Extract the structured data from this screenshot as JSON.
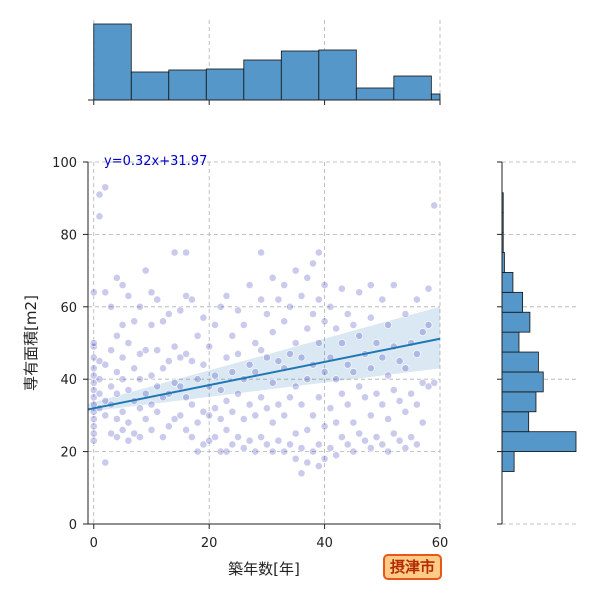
{
  "badge_label": "摂津市",
  "chart_data": {
    "type": "scatter",
    "title": "",
    "xlabel": "築年数[年]",
    "ylabel": "専有面積[m2]",
    "xlim": [
      -1,
      60
    ],
    "ylim": [
      0,
      100
    ],
    "xticks": [
      0,
      20,
      40,
      60
    ],
    "yticks": [
      0,
      20,
      40,
      60,
      80,
      100
    ],
    "grid": true,
    "regression": {
      "equation": "y=0.32x+31.97",
      "slope": 0.32,
      "intercept": 31.97,
      "ci_left": [
        31.0,
        33.2
      ],
      "ci_right": [
        43.0,
        60.0
      ]
    },
    "colors": {
      "point": "#3f3fbf",
      "regression_line": "#1f77b4",
      "ci_band": "#1f77b4",
      "histogram_fill": "#5597c9",
      "histogram_edge": "#111111",
      "equation_text": "#0000cc",
      "badge_background": "#ffcc88",
      "badge_border": "#e8561a",
      "badge_text": "#b22a00"
    },
    "marginal_x_histogram": {
      "bin_edges": [
        0,
        6.5,
        13,
        19.5,
        26,
        32.5,
        39,
        45.5,
        52,
        58.5,
        65
      ],
      "counts": [
        76,
        28,
        30,
        31,
        40,
        49,
        50,
        12,
        24,
        6
      ]
    },
    "marginal_y_histogram": {
      "bin_edges": [
        14.5,
        20,
        25.5,
        31,
        36.5,
        42,
        47.5,
        53,
        58.5,
        64,
        69.5,
        75,
        80.5,
        86,
        91.5
      ],
      "counts": [
        10,
        61,
        22,
        28,
        34,
        30,
        14,
        23,
        17,
        9,
        2,
        1,
        1,
        1
      ]
    },
    "points": [
      [
        0,
        23
      ],
      [
        0,
        25
      ],
      [
        0,
        27
      ],
      [
        0,
        29
      ],
      [
        0,
        31
      ],
      [
        0,
        33
      ],
      [
        0,
        35
      ],
      [
        0,
        37
      ],
      [
        0,
        39
      ],
      [
        0,
        41
      ],
      [
        0,
        43
      ],
      [
        0,
        46
      ],
      [
        0,
        49
      ],
      [
        0,
        50
      ],
      [
        0,
        64
      ],
      [
        1,
        32
      ],
      [
        1,
        36
      ],
      [
        1,
        40
      ],
      [
        1,
        45
      ],
      [
        1,
        85
      ],
      [
        1,
        91
      ],
      [
        2,
        17
      ],
      [
        2,
        30
      ],
      [
        2,
        34
      ],
      [
        2,
        44
      ],
      [
        2,
        64
      ],
      [
        2,
        93
      ],
      [
        3,
        25
      ],
      [
        3,
        33
      ],
      [
        3,
        38
      ],
      [
        3,
        48
      ],
      [
        3,
        60
      ],
      [
        4,
        24
      ],
      [
        4,
        29
      ],
      [
        4,
        36
      ],
      [
        4,
        42
      ],
      [
        4,
        52
      ],
      [
        4,
        68
      ],
      [
        5,
        26
      ],
      [
        5,
        31
      ],
      [
        5,
        40
      ],
      [
        5,
        46
      ],
      [
        5,
        55
      ],
      [
        5,
        66
      ],
      [
        6,
        23
      ],
      [
        6,
        28
      ],
      [
        6,
        37
      ],
      [
        6,
        50
      ],
      [
        6,
        63
      ],
      [
        7,
        25
      ],
      [
        7,
        34
      ],
      [
        7,
        43
      ],
      [
        7,
        56
      ],
      [
        8,
        24
      ],
      [
        8,
        32
      ],
      [
        8,
        40
      ],
      [
        8,
        47
      ],
      [
        8,
        60
      ],
      [
        9,
        29
      ],
      [
        9,
        36
      ],
      [
        9,
        48
      ],
      [
        9,
        70
      ],
      [
        10,
        26
      ],
      [
        10,
        33
      ],
      [
        10,
        41
      ],
      [
        10,
        55
      ],
      [
        10,
        64
      ],
      [
        11,
        31
      ],
      [
        11,
        38
      ],
      [
        11,
        48
      ],
      [
        11,
        62
      ],
      [
        12,
        24
      ],
      [
        12,
        35
      ],
      [
        12,
        43
      ],
      [
        12,
        56
      ],
      [
        13,
        27
      ],
      [
        13,
        36
      ],
      [
        13,
        45
      ],
      [
        13,
        58
      ],
      [
        14,
        29
      ],
      [
        14,
        39
      ],
      [
        14,
        49
      ],
      [
        14,
        75
      ],
      [
        15,
        30
      ],
      [
        15,
        38
      ],
      [
        15,
        46
      ],
      [
        15,
        59
      ],
      [
        16,
        26
      ],
      [
        16,
        35
      ],
      [
        16,
        47
      ],
      [
        16,
        63
      ],
      [
        16,
        75
      ],
      [
        17,
        24
      ],
      [
        17,
        33
      ],
      [
        17,
        45
      ],
      [
        17,
        62
      ],
      [
        18,
        20
      ],
      [
        18,
        28
      ],
      [
        18,
        40
      ],
      [
        18,
        52
      ],
      [
        19,
        22
      ],
      [
        19,
        31
      ],
      [
        19,
        44
      ],
      [
        19,
        57
      ],
      [
        20,
        23
      ],
      [
        20,
        30
      ],
      [
        20,
        38
      ],
      [
        20,
        49
      ],
      [
        21,
        24
      ],
      [
        21,
        32
      ],
      [
        21,
        41
      ],
      [
        21,
        55
      ],
      [
        22,
        20
      ],
      [
        22,
        29
      ],
      [
        22,
        37
      ],
      [
        22,
        60
      ],
      [
        23,
        20
      ],
      [
        23,
        26
      ],
      [
        23,
        34
      ],
      [
        23,
        46
      ],
      [
        23,
        63
      ],
      [
        24,
        22
      ],
      [
        24,
        31
      ],
      [
        24,
        42
      ],
      [
        24,
        52
      ],
      [
        25,
        24
      ],
      [
        25,
        36
      ],
      [
        25,
        47
      ],
      [
        25,
        59
      ],
      [
        26,
        21
      ],
      [
        26,
        29
      ],
      [
        26,
        40
      ],
      [
        26,
        55
      ],
      [
        27,
        23
      ],
      [
        27,
        33
      ],
      [
        27,
        44
      ],
      [
        27,
        66
      ],
      [
        28,
        20
      ],
      [
        28,
        30
      ],
      [
        28,
        42
      ],
      [
        28,
        50
      ],
      [
        29,
        24
      ],
      [
        29,
        35
      ],
      [
        29,
        48
      ],
      [
        29,
        62
      ],
      [
        29,
        75
      ],
      [
        30,
        22
      ],
      [
        30,
        32
      ],
      [
        30,
        46
      ],
      [
        30,
        58
      ],
      [
        31,
        20
      ],
      [
        31,
        28
      ],
      [
        31,
        39
      ],
      [
        31,
        53
      ],
      [
        31,
        68
      ],
      [
        32,
        23
      ],
      [
        32,
        33
      ],
      [
        32,
        45
      ],
      [
        32,
        62
      ],
      [
        33,
        20
      ],
      [
        33,
        30
      ],
      [
        33,
        43
      ],
      [
        33,
        56
      ],
      [
        33,
        66
      ],
      [
        34,
        22
      ],
      [
        34,
        35
      ],
      [
        34,
        47
      ],
      [
        34,
        60
      ],
      [
        35,
        18
      ],
      [
        35,
        25
      ],
      [
        35,
        38
      ],
      [
        35,
        50
      ],
      [
        35,
        70
      ],
      [
        36,
        14
      ],
      [
        36,
        21
      ],
      [
        36,
        33
      ],
      [
        36,
        46
      ],
      [
        36,
        63
      ],
      [
        37,
        17
      ],
      [
        37,
        26
      ],
      [
        37,
        40
      ],
      [
        37,
        54
      ],
      [
        37,
        68
      ],
      [
        38,
        20
      ],
      [
        38,
        30
      ],
      [
        38,
        44
      ],
      [
        38,
        58
      ],
      [
        38,
        72
      ],
      [
        39,
        16
      ],
      [
        39,
        22
      ],
      [
        39,
        35
      ],
      [
        39,
        50
      ],
      [
        39,
        62
      ],
      [
        39,
        75
      ],
      [
        40,
        18
      ],
      [
        40,
        27
      ],
      [
        40,
        42
      ],
      [
        40,
        56
      ],
      [
        40,
        66
      ],
      [
        41,
        21
      ],
      [
        41,
        32
      ],
      [
        41,
        46
      ],
      [
        41,
        60
      ],
      [
        42,
        19
      ],
      [
        42,
        28
      ],
      [
        42,
        40
      ],
      [
        42,
        54
      ],
      [
        43,
        24
      ],
      [
        43,
        36
      ],
      [
        43,
        50
      ],
      [
        43,
        65
      ],
      [
        44,
        22
      ],
      [
        44,
        33
      ],
      [
        44,
        44
      ],
      [
        44,
        58
      ],
      [
        45,
        20
      ],
      [
        45,
        28
      ],
      [
        45,
        42
      ],
      [
        45,
        55
      ],
      [
        46,
        25
      ],
      [
        46,
        38
      ],
      [
        46,
        52
      ],
      [
        46,
        64
      ],
      [
        47,
        23
      ],
      [
        47,
        35
      ],
      [
        47,
        47
      ],
      [
        48,
        21
      ],
      [
        48,
        30
      ],
      [
        48,
        43
      ],
      [
        48,
        57
      ],
      [
        48,
        66
      ],
      [
        49,
        24
      ],
      [
        49,
        36
      ],
      [
        49,
        50
      ],
      [
        50,
        22
      ],
      [
        50,
        33
      ],
      [
        50,
        46
      ],
      [
        50,
        62
      ],
      [
        51,
        20
      ],
      [
        51,
        29
      ],
      [
        51,
        41
      ],
      [
        51,
        55
      ],
      [
        52,
        25
      ],
      [
        52,
        37
      ],
      [
        52,
        49
      ],
      [
        52,
        66
      ],
      [
        53,
        23
      ],
      [
        53,
        34
      ],
      [
        53,
        45
      ],
      [
        54,
        21
      ],
      [
        54,
        31
      ],
      [
        54,
        43
      ],
      [
        54,
        58
      ],
      [
        55,
        24
      ],
      [
        55,
        36
      ],
      [
        55,
        50
      ],
      [
        56,
        22
      ],
      [
        56,
        33
      ],
      [
        56,
        47
      ],
      [
        56,
        62
      ],
      [
        57,
        28
      ],
      [
        57,
        39
      ],
      [
        57,
        53
      ],
      [
        58,
        38
      ],
      [
        58,
        55
      ],
      [
        58,
        65
      ],
      [
        59,
        39
      ],
      [
        59,
        88
      ]
    ]
  }
}
